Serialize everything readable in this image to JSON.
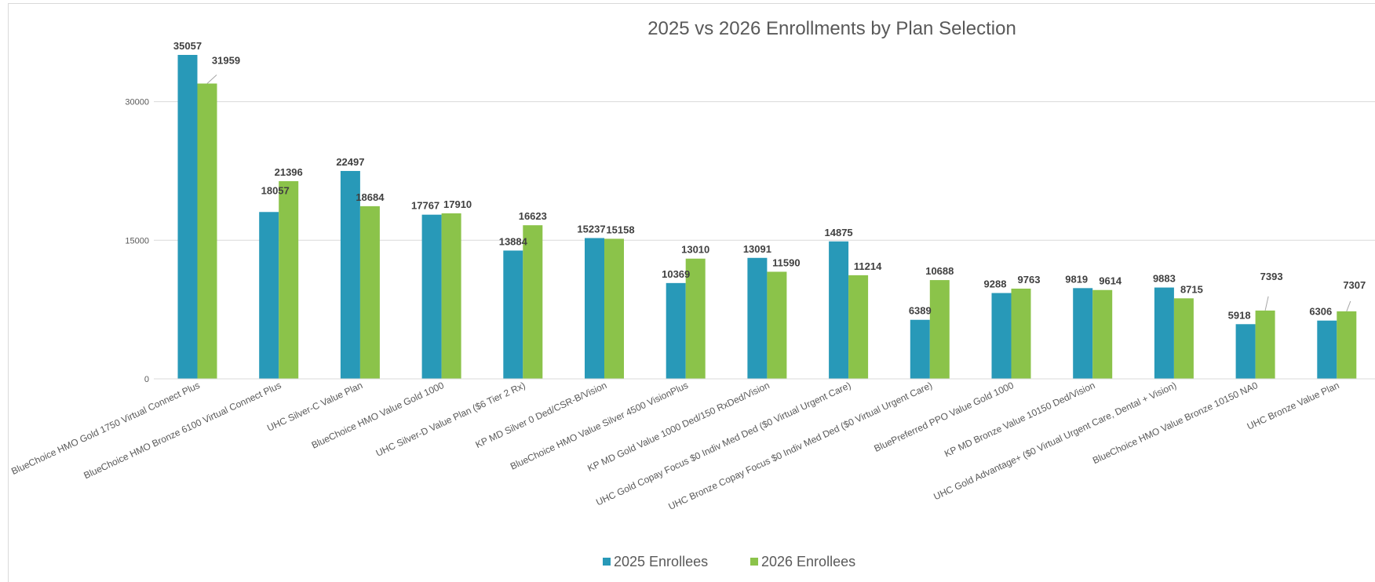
{
  "chart_data": {
    "type": "bar",
    "title": "2025 vs 2026 Enrollments by Plan Selection",
    "xlabel": "",
    "ylabel": "",
    "ylim": [
      0,
      35057
    ],
    "yticks": [
      0,
      15000,
      30000
    ],
    "grid": true,
    "legend_position": "bottom",
    "categories": [
      "BlueChoice HMO Gold 1750 Virtual Connect Plus",
      "BlueChoice HMO Bronze 6100 Virtual Connect Plus",
      "UHC Silver-C Value Plan",
      "BlueChoice HMO Value Gold 1000",
      "UHC Silver-D Value Plan ($6 Tier 2 Rx)",
      "KP MD Silver 0 Ded/CSR-B/Vision",
      "BlueChoice HMO Value Silver 4500 VisionPlus",
      "KP MD Gold Value 1000 Ded/150 RxDed/Vision",
      "UHC Gold Copay Focus $0 Indiv Med Ded ($0 Virtual Urgent Care)",
      "UHC Bronze Copay Focus $0 Indiv Med Ded ($0 Virtual Urgent Care)",
      "BluePreferred PPO Value Gold 1000",
      "KP MD Bronze Value 10150 Ded/Vision",
      "UHC Gold Advantage+ ($0 Virtual Urgent Care, Dental + Vision)",
      "BlueChoice HMO Value Bronze 10150 NA0",
      "UHC Bronze Value Plan"
    ],
    "series": [
      {
        "name": "2025 Enrollees",
        "color": "#2899b8",
        "values": [
          35057,
          18057,
          22497,
          17767,
          13884,
          15237,
          10369,
          13091,
          14875,
          6389,
          9288,
          9819,
          9883,
          5918,
          6306
        ]
      },
      {
        "name": "2026 Enrollees",
        "color": "#8bc34a",
        "values": [
          31959,
          21396,
          18684,
          17910,
          16623,
          15158,
          13010,
          11590,
          11214,
          10688,
          9763,
          9614,
          8715,
          7393,
          7307
        ]
      }
    ]
  }
}
